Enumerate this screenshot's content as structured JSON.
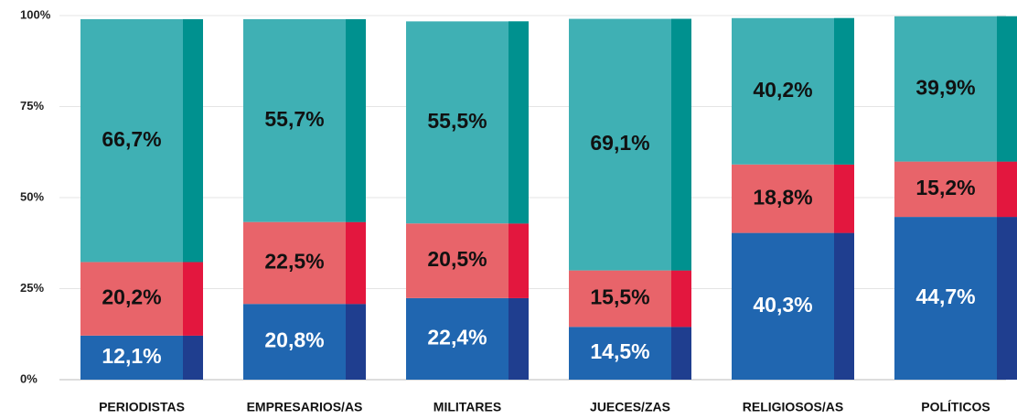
{
  "chart_data": {
    "type": "stacked-bar",
    "categories": [
      "PERIODISTAS",
      "EMPRESARIOS/AS",
      "MILITARES",
      "JUECES/ZAS",
      "RELIGIOSOS/AS",
      "POLÍTICOS"
    ],
    "series": [
      {
        "color": "#2066b0",
        "shade": "#1f3e8f",
        "label_color": "#ffffff",
        "values": [
          12.1,
          20.8,
          22.4,
          14.5,
          40.3,
          44.7
        ],
        "value_labels": [
          "12,1%",
          "20,8%",
          "22,4%",
          "14,5%",
          "40,3%",
          "44,7%"
        ]
      },
      {
        "color": "#e8646a",
        "shade": "#e3173e",
        "label_color": "#111111",
        "values": [
          20.2,
          22.5,
          20.5,
          15.5,
          18.8,
          15.2
        ],
        "value_labels": [
          "20,2%",
          "22,5%",
          "20,5%",
          "15,5%",
          "18,8%",
          "15,2%"
        ]
      },
      {
        "color": "#3fb0b4",
        "shade": "#00918f",
        "label_color": "#111111",
        "values": [
          66.7,
          55.7,
          55.5,
          69.1,
          40.2,
          39.9
        ],
        "value_labels": [
          "66,7%",
          "55,7%",
          "55,5%",
          "69,1%",
          "40,2%",
          "39,9%"
        ]
      }
    ],
    "ylim": [
      0,
      100
    ],
    "yticks": [
      {
        "value": 0,
        "label": "0%"
      },
      {
        "value": 25,
        "label": "25%"
      },
      {
        "value": 50,
        "label": "50%"
      },
      {
        "value": 75,
        "label": "75%"
      },
      {
        "value": 100,
        "label": "100%"
      }
    ],
    "grid": true
  }
}
